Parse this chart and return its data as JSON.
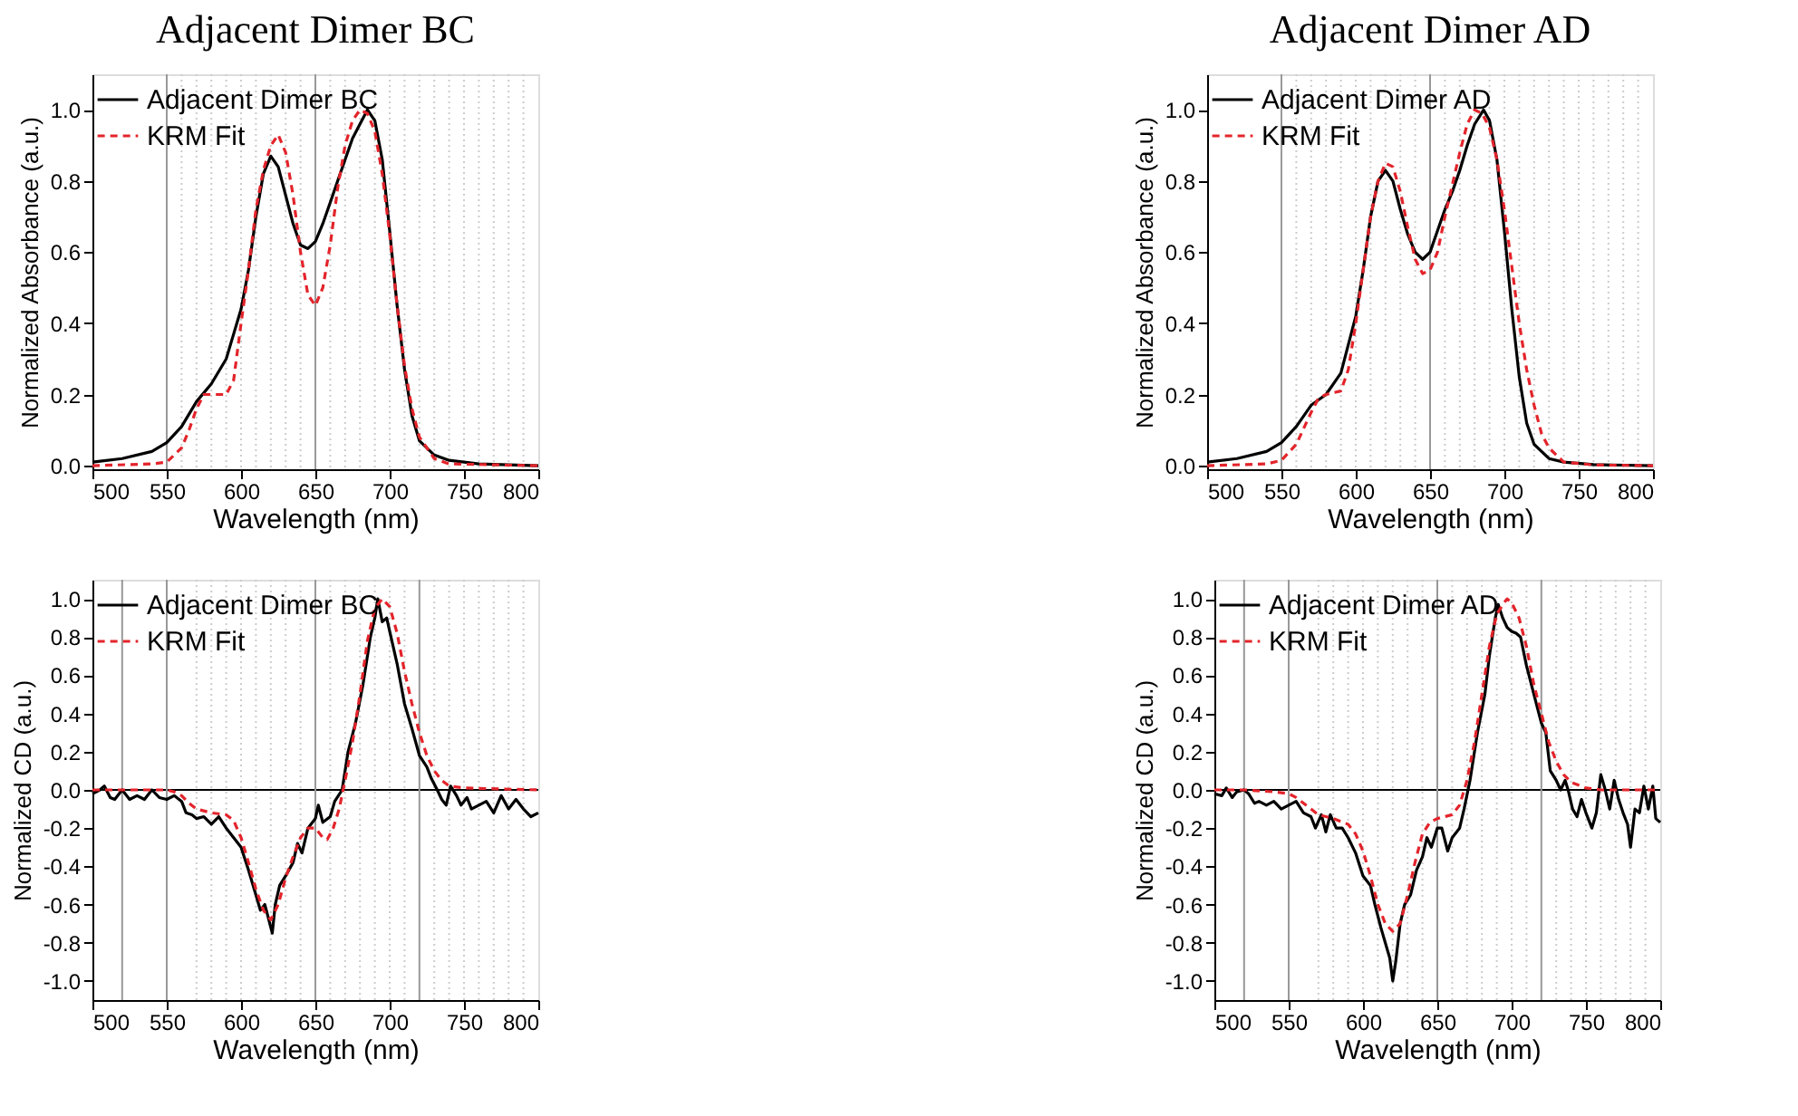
{
  "chart_data": [
    {
      "type": "line",
      "title": "Adjacent Dimer BC",
      "xlabel": "Wavelength (nm)",
      "ylabel": "Normalized Absorbance (a.u.)",
      "xlim": [
        500,
        800
      ],
      "xticks": [
        500,
        550,
        600,
        650,
        700,
        750,
        800
      ],
      "ylim": [
        -0.01,
        1.1
      ],
      "yticks": [
        {
          "value": 0,
          "label": "0.0"
        },
        {
          "value": 0.2,
          "label": "0.2"
        },
        {
          "value": 0.4,
          "label": "0.4"
        },
        {
          "value": 0.6,
          "label": "0.6"
        },
        {
          "value": 0.8,
          "label": "0.8"
        },
        {
          "value": 1,
          "label": "1.0"
        }
      ],
      "legend": "top left",
      "series": [
        {
          "name": "Adjacent Dimer BC",
          "color": "#000000",
          "line_style": "solid",
          "x": [
            500,
            520,
            540,
            550,
            560,
            570,
            580,
            590,
            600,
            605,
            610,
            615,
            620,
            625,
            630,
            635,
            640,
            645,
            650,
            655,
            660,
            665,
            670,
            675,
            680,
            685,
            690,
            695,
            700,
            705,
            710,
            715,
            720,
            730,
            740,
            760,
            800
          ],
          "values": [
            0.01,
            0.02,
            0.04,
            0.065,
            0.11,
            0.18,
            0.23,
            0.3,
            0.44,
            0.55,
            0.7,
            0.82,
            0.87,
            0.84,
            0.76,
            0.68,
            0.62,
            0.61,
            0.63,
            0.68,
            0.74,
            0.8,
            0.86,
            0.92,
            0.96,
            1.0,
            0.97,
            0.86,
            0.66,
            0.45,
            0.27,
            0.14,
            0.07,
            0.03,
            0.015,
            0.005,
            0
          ]
        },
        {
          "name": "KRM Fit",
          "color": "#e3242b",
          "line_style": "dashed",
          "x": [
            500,
            540,
            550,
            560,
            565,
            570,
            575,
            580,
            590,
            595,
            600,
            605,
            610,
            615,
            620,
            625,
            630,
            635,
            640,
            645,
            650,
            655,
            660,
            665,
            670,
            675,
            680,
            685,
            690,
            695,
            700,
            705,
            710,
            715,
            720,
            730,
            740,
            800
          ],
          "values": [
            0,
            0.005,
            0.01,
            0.05,
            0.1,
            0.16,
            0.2,
            0.2,
            0.2,
            0.24,
            0.4,
            0.55,
            0.72,
            0.83,
            0.9,
            0.93,
            0.88,
            0.76,
            0.6,
            0.48,
            0.45,
            0.5,
            0.62,
            0.78,
            0.9,
            0.97,
            1.0,
            0.99,
            0.94,
            0.82,
            0.65,
            0.45,
            0.28,
            0.16,
            0.08,
            0.02,
            0.005,
            0
          ]
        }
      ],
      "ref_lines": [
        {
          "axis": "x",
          "value": 550,
          "color": "#999999",
          "line_style": "solid"
        },
        {
          "axis": "x",
          "value": 650,
          "color": "#999999",
          "line_style": "solid"
        },
        {
          "axis": "x",
          "value": 560,
          "color": "#cccccc",
          "line_style": "dotted"
        },
        {
          "axis": "x",
          "value": 570,
          "color": "#cccccc",
          "line_style": "dotted"
        },
        {
          "axis": "x",
          "value": 580,
          "color": "#cccccc",
          "line_style": "dotted"
        },
        {
          "axis": "x",
          "value": 590,
          "color": "#cccccc",
          "line_style": "dotted"
        },
        {
          "axis": "x",
          "value": 600,
          "color": "#cccccc",
          "line_style": "dotted"
        },
        {
          "axis": "x",
          "value": 610,
          "color": "#cccccc",
          "line_style": "dotted"
        },
        {
          "axis": "x",
          "value": 620,
          "color": "#cccccc",
          "line_style": "dotted"
        },
        {
          "axis": "x",
          "value": 630,
          "color": "#cccccc",
          "line_style": "dotted"
        },
        {
          "axis": "x",
          "value": 640,
          "color": "#cccccc",
          "line_style": "dotted"
        },
        {
          "axis": "x",
          "value": 660,
          "color": "#cccccc",
          "line_style": "dotted"
        },
        {
          "axis": "x",
          "value": 670,
          "color": "#cccccc",
          "line_style": "dotted"
        },
        {
          "axis": "x",
          "value": 680,
          "color": "#cccccc",
          "line_style": "dotted"
        },
        {
          "axis": "x",
          "value": 690,
          "color": "#cccccc",
          "line_style": "dotted"
        },
        {
          "axis": "x",
          "value": 700,
          "color": "#cccccc",
          "line_style": "dotted"
        },
        {
          "axis": "x",
          "value": 710,
          "color": "#cccccc",
          "line_style": "dotted"
        },
        {
          "axis": "x",
          "value": 720,
          "color": "#cccccc",
          "line_style": "dotted"
        },
        {
          "axis": "x",
          "value": 730,
          "color": "#cccccc",
          "line_style": "dotted"
        },
        {
          "axis": "x",
          "value": 740,
          "color": "#cccccc",
          "line_style": "dotted"
        },
        {
          "axis": "x",
          "value": 750,
          "color": "#cccccc",
          "line_style": "dotted"
        },
        {
          "axis": "x",
          "value": 760,
          "color": "#cccccc",
          "line_style": "dotted"
        },
        {
          "axis": "x",
          "value": 770,
          "color": "#cccccc",
          "line_style": "dotted"
        },
        {
          "axis": "x",
          "value": 780,
          "color": "#cccccc",
          "line_style": "dotted"
        },
        {
          "axis": "x",
          "value": 790,
          "color": "#cccccc",
          "line_style": "dotted"
        }
      ]
    },
    {
      "type": "line",
      "title": "Adjacent Dimer AD",
      "xlabel": "Wavelength (nm)",
      "ylabel": "Normalized Absorbance (a.u.)",
      "xlim": [
        500,
        800
      ],
      "xticks": [
        500,
        550,
        600,
        650,
        700,
        750,
        800
      ],
      "ylim": [
        -0.01,
        1.1
      ],
      "yticks": [
        {
          "value": 0,
          "label": "0.0"
        },
        {
          "value": 0.2,
          "label": "0.2"
        },
        {
          "value": 0.4,
          "label": "0.4"
        },
        {
          "value": 0.6,
          "label": "0.6"
        },
        {
          "value": 0.8,
          "label": "0.8"
        },
        {
          "value": 1,
          "label": "1.0"
        }
      ],
      "legend": "top left",
      "series": [
        {
          "name": "Adjacent Dimer AD",
          "color": "#000000",
          "line_style": "solid",
          "x": [
            500,
            520,
            540,
            550,
            560,
            570,
            580,
            590,
            600,
            605,
            610,
            615,
            620,
            625,
            630,
            635,
            640,
            645,
            650,
            655,
            660,
            665,
            670,
            675,
            680,
            686,
            690,
            695,
            700,
            705,
            710,
            715,
            720,
            730,
            740,
            760,
            800
          ],
          "values": [
            0.01,
            0.02,
            0.04,
            0.065,
            0.11,
            0.17,
            0.2,
            0.26,
            0.42,
            0.55,
            0.7,
            0.8,
            0.83,
            0.8,
            0.72,
            0.65,
            0.6,
            0.58,
            0.6,
            0.66,
            0.72,
            0.77,
            0.83,
            0.9,
            0.96,
            1.0,
            0.97,
            0.86,
            0.66,
            0.44,
            0.25,
            0.12,
            0.06,
            0.02,
            0.01,
            0.003,
            0
          ]
        },
        {
          "name": "KRM Fit",
          "color": "#e3242b",
          "line_style": "dashed",
          "x": [
            500,
            540,
            550,
            560,
            570,
            575,
            580,
            590,
            595,
            600,
            605,
            610,
            615,
            620,
            625,
            630,
            635,
            640,
            645,
            650,
            655,
            660,
            665,
            670,
            675,
            680,
            685,
            690,
            695,
            700,
            705,
            710,
            715,
            720,
            725,
            730,
            740,
            760,
            800
          ],
          "values": [
            0,
            0.005,
            0.015,
            0.06,
            0.15,
            0.19,
            0.2,
            0.21,
            0.27,
            0.4,
            0.55,
            0.7,
            0.8,
            0.85,
            0.84,
            0.77,
            0.67,
            0.58,
            0.54,
            0.55,
            0.6,
            0.7,
            0.79,
            0.88,
            0.96,
            1.0,
            0.99,
            0.95,
            0.86,
            0.72,
            0.56,
            0.4,
            0.27,
            0.17,
            0.09,
            0.05,
            0.01,
            0.002,
            0
          ]
        }
      ],
      "ref_lines": [
        {
          "axis": "x",
          "value": 550,
          "color": "#999999",
          "line_style": "solid"
        },
        {
          "axis": "x",
          "value": 650,
          "color": "#999999",
          "line_style": "solid"
        },
        {
          "axis": "x",
          "value": 560,
          "color": "#cccccc",
          "line_style": "dotted"
        },
        {
          "axis": "x",
          "value": 570,
          "color": "#cccccc",
          "line_style": "dotted"
        },
        {
          "axis": "x",
          "value": 580,
          "color": "#cccccc",
          "line_style": "dotted"
        },
        {
          "axis": "x",
          "value": 590,
          "color": "#cccccc",
          "line_style": "dotted"
        },
        {
          "axis": "x",
          "value": 600,
          "color": "#cccccc",
          "line_style": "dotted"
        },
        {
          "axis": "x",
          "value": 610,
          "color": "#cccccc",
          "line_style": "dotted"
        },
        {
          "axis": "x",
          "value": 620,
          "color": "#cccccc",
          "line_style": "dotted"
        },
        {
          "axis": "x",
          "value": 630,
          "color": "#cccccc",
          "line_style": "dotted"
        },
        {
          "axis": "x",
          "value": 640,
          "color": "#cccccc",
          "line_style": "dotted"
        },
        {
          "axis": "x",
          "value": 660,
          "color": "#cccccc",
          "line_style": "dotted"
        },
        {
          "axis": "x",
          "value": 670,
          "color": "#cccccc",
          "line_style": "dotted"
        },
        {
          "axis": "x",
          "value": 680,
          "color": "#cccccc",
          "line_style": "dotted"
        },
        {
          "axis": "x",
          "value": 690,
          "color": "#cccccc",
          "line_style": "dotted"
        },
        {
          "axis": "x",
          "value": 700,
          "color": "#cccccc",
          "line_style": "dotted"
        },
        {
          "axis": "x",
          "value": 710,
          "color": "#cccccc",
          "line_style": "dotted"
        },
        {
          "axis": "x",
          "value": 720,
          "color": "#cccccc",
          "line_style": "dotted"
        },
        {
          "axis": "x",
          "value": 730,
          "color": "#cccccc",
          "line_style": "dotted"
        },
        {
          "axis": "x",
          "value": 740,
          "color": "#cccccc",
          "line_style": "dotted"
        },
        {
          "axis": "x",
          "value": 750,
          "color": "#cccccc",
          "line_style": "dotted"
        },
        {
          "axis": "x",
          "value": 760,
          "color": "#cccccc",
          "line_style": "dotted"
        },
        {
          "axis": "x",
          "value": 770,
          "color": "#cccccc",
          "line_style": "dotted"
        },
        {
          "axis": "x",
          "value": 780,
          "color": "#cccccc",
          "line_style": "dotted"
        },
        {
          "axis": "x",
          "value": 790,
          "color": "#cccccc",
          "line_style": "dotted"
        }
      ]
    },
    {
      "type": "line",
      "xlabel": "Wavelength (nm)",
      "ylabel": "Normalized CD (a.u.)",
      "xlim": [
        500,
        800
      ],
      "xticks": [
        500,
        550,
        600,
        650,
        700,
        750,
        800
      ],
      "ylim": [
        -1.1,
        1.1
      ],
      "yticks": [
        {
          "value": -1,
          "label": "-1.0"
        },
        {
          "value": -0.8,
          "label": "-0.8"
        },
        {
          "value": -0.6,
          "label": "-0.6"
        },
        {
          "value": -0.4,
          "label": "-0.4"
        },
        {
          "value": -0.2,
          "label": "-0.2"
        },
        {
          "value": 0,
          "label": "0.0"
        },
        {
          "value": 0.2,
          "label": "0.2"
        },
        {
          "value": 0.4,
          "label": "0.4"
        },
        {
          "value": 0.6,
          "label": "0.6"
        },
        {
          "value": 0.8,
          "label": "0.8"
        },
        {
          "value": 1,
          "label": "1.0"
        }
      ],
      "legend": "top left",
      "series": [
        {
          "name": "Adjacent Dimer BC",
          "color": "#000000",
          "line_style": "solid",
          "x": [
            500,
            505,
            508,
            512,
            515,
            520,
            525,
            530,
            535,
            540,
            545,
            550,
            555,
            560,
            563,
            567,
            570,
            575,
            580,
            585,
            590,
            595,
            600,
            605,
            610,
            613,
            616,
            618,
            621,
            623,
            626,
            630,
            635,
            638,
            641,
            645,
            650,
            652,
            655,
            660,
            663,
            668,
            672,
            677,
            682,
            687,
            690,
            692,
            695,
            698,
            700,
            705,
            710,
            715,
            720,
            725,
            728,
            732,
            735,
            738,
            741,
            745,
            748,
            752,
            755,
            760,
            765,
            770,
            775,
            780,
            785,
            790,
            795,
            800
          ],
          "values": [
            -0.02,
            0.0,
            0.02,
            -0.04,
            -0.05,
            0.0,
            -0.05,
            -0.03,
            -0.05,
            0.0,
            -0.04,
            -0.05,
            -0.03,
            -0.06,
            -0.12,
            -0.13,
            -0.15,
            -0.14,
            -0.18,
            -0.14,
            -0.2,
            -0.25,
            -0.3,
            -0.42,
            -0.55,
            -0.63,
            -0.6,
            -0.66,
            -0.75,
            -0.6,
            -0.5,
            -0.45,
            -0.38,
            -0.28,
            -0.33,
            -0.2,
            -0.15,
            -0.08,
            -0.17,
            -0.14,
            -0.06,
            0.0,
            0.2,
            0.35,
            0.55,
            0.8,
            0.9,
            1.0,
            0.88,
            0.9,
            0.83,
            0.66,
            0.45,
            0.32,
            0.18,
            0.12,
            0.06,
            0.0,
            -0.05,
            -0.08,
            0.02,
            -0.03,
            -0.08,
            -0.04,
            -0.1,
            -0.08,
            -0.06,
            -0.12,
            -0.03,
            -0.1,
            -0.05,
            -0.1,
            -0.14,
            -0.12
          ]
        },
        {
          "name": "KRM Fit",
          "color": "#e3242b",
          "line_style": "dashed",
          "x": [
            500,
            550,
            555,
            560,
            565,
            570,
            580,
            590,
            595,
            600,
            605,
            610,
            615,
            620,
            625,
            630,
            635,
            640,
            645,
            650,
            655,
            658,
            662,
            666,
            670,
            675,
            680,
            685,
            690,
            695,
            700,
            705,
            710,
            715,
            720,
            725,
            730,
            735,
            740,
            750,
            800
          ],
          "values": [
            0,
            0,
            -0.01,
            -0.03,
            -0.07,
            -0.1,
            -0.12,
            -0.13,
            -0.16,
            -0.25,
            -0.38,
            -0.52,
            -0.63,
            -0.68,
            -0.6,
            -0.46,
            -0.35,
            -0.25,
            -0.2,
            -0.2,
            -0.25,
            -0.26,
            -0.2,
            -0.1,
            0.05,
            0.25,
            0.5,
            0.78,
            0.95,
            1.0,
            0.96,
            0.82,
            0.62,
            0.45,
            0.3,
            0.18,
            0.1,
            0.05,
            0.02,
            0.01,
            0
          ]
        }
      ],
      "ref_lines": [
        {
          "axis": "y",
          "value": 0,
          "color": "#000000",
          "line_style": "solid"
        },
        {
          "axis": "x",
          "value": 520,
          "color": "#999999",
          "line_style": "solid"
        },
        {
          "axis": "x",
          "value": 550,
          "color": "#999999",
          "line_style": "solid"
        },
        {
          "axis": "x",
          "value": 650,
          "color": "#999999",
          "line_style": "solid"
        },
        {
          "axis": "x",
          "value": 720,
          "color": "#999999",
          "line_style": "solid"
        },
        {
          "axis": "x",
          "value": 570,
          "color": "#cccccc",
          "line_style": "dotted"
        },
        {
          "axis": "x",
          "value": 580,
          "color": "#cccccc",
          "line_style": "dotted"
        },
        {
          "axis": "x",
          "value": 590,
          "color": "#cccccc",
          "line_style": "dotted"
        },
        {
          "axis": "x",
          "value": 600,
          "color": "#cccccc",
          "line_style": "dotted"
        },
        {
          "axis": "x",
          "value": 610,
          "color": "#cccccc",
          "line_style": "dotted"
        },
        {
          "axis": "x",
          "value": 620,
          "color": "#cccccc",
          "line_style": "dotted"
        },
        {
          "axis": "x",
          "value": 630,
          "color": "#cccccc",
          "line_style": "dotted"
        },
        {
          "axis": "x",
          "value": 640,
          "color": "#cccccc",
          "line_style": "dotted"
        },
        {
          "axis": "x",
          "value": 660,
          "color": "#cccccc",
          "line_style": "dotted"
        },
        {
          "axis": "x",
          "value": 670,
          "color": "#cccccc",
          "line_style": "dotted"
        },
        {
          "axis": "x",
          "value": 680,
          "color": "#cccccc",
          "line_style": "dotted"
        },
        {
          "axis": "x",
          "value": 690,
          "color": "#cccccc",
          "line_style": "dotted"
        },
        {
          "axis": "x",
          "value": 700,
          "color": "#cccccc",
          "line_style": "dotted"
        },
        {
          "axis": "x",
          "value": 710,
          "color": "#cccccc",
          "line_style": "dotted"
        },
        {
          "axis": "x",
          "value": 730,
          "color": "#cccccc",
          "line_style": "dotted"
        },
        {
          "axis": "x",
          "value": 740,
          "color": "#cccccc",
          "line_style": "dotted"
        },
        {
          "axis": "x",
          "value": 750,
          "color": "#cccccc",
          "line_style": "dotted"
        },
        {
          "axis": "x",
          "value": 760,
          "color": "#cccccc",
          "line_style": "dotted"
        },
        {
          "axis": "x",
          "value": 770,
          "color": "#cccccc",
          "line_style": "dotted"
        },
        {
          "axis": "x",
          "value": 780,
          "color": "#cccccc",
          "line_style": "dotted"
        },
        {
          "axis": "x",
          "value": 790,
          "color": "#cccccc",
          "line_style": "dotted"
        }
      ]
    },
    {
      "type": "line",
      "xlabel": "Wavelength (nm)",
      "ylabel": "Normalized CD (a.u.)",
      "xlim": [
        500,
        800
      ],
      "xticks": [
        500,
        550,
        600,
        650,
        700,
        750,
        800
      ],
      "ylim": [
        -1.1,
        1.1
      ],
      "yticks": [
        {
          "value": -1,
          "label": "-1.0"
        },
        {
          "value": -0.8,
          "label": "-0.8"
        },
        {
          "value": -0.6,
          "label": "-0.6"
        },
        {
          "value": -0.4,
          "label": "-0.4"
        },
        {
          "value": -0.2,
          "label": "-0.2"
        },
        {
          "value": 0,
          "label": "0.0"
        },
        {
          "value": 0.2,
          "label": "0.2"
        },
        {
          "value": 0.4,
          "label": "0.4"
        },
        {
          "value": 0.6,
          "label": "0.6"
        },
        {
          "value": 0.8,
          "label": "0.8"
        },
        {
          "value": 1,
          "label": "1.0"
        }
      ],
      "legend": "top left",
      "series": [
        {
          "name": "Adjacent Dimer AD",
          "color": "#000000",
          "line_style": "solid",
          "x": [
            500,
            505,
            508,
            512,
            515,
            520,
            523,
            527,
            530,
            535,
            540,
            545,
            550,
            555,
            560,
            565,
            568,
            572,
            575,
            578,
            582,
            586,
            590,
            595,
            600,
            605,
            608,
            612,
            615,
            618,
            620,
            622,
            625,
            628,
            632,
            636,
            640,
            643,
            646,
            650,
            653,
            657,
            660,
            665,
            668,
            672,
            677,
            682,
            685,
            689,
            691,
            694,
            697,
            700,
            703,
            706,
            710,
            715,
            720,
            723,
            726,
            730,
            733,
            736,
            738,
            741,
            744,
            747,
            750,
            754,
            757,
            760,
            763,
            766,
            769,
            772,
            775,
            778,
            780,
            783,
            786,
            789,
            792,
            795,
            797,
            800
          ],
          "values": [
            -0.02,
            -0.03,
            0.01,
            -0.04,
            -0.01,
            0.0,
            -0.02,
            -0.07,
            -0.06,
            -0.08,
            -0.06,
            -0.1,
            -0.08,
            -0.06,
            -0.12,
            -0.14,
            -0.2,
            -0.13,
            -0.22,
            -0.13,
            -0.2,
            -0.2,
            -0.25,
            -0.33,
            -0.45,
            -0.5,
            -0.6,
            -0.72,
            -0.8,
            -0.88,
            -1.0,
            -0.9,
            -0.7,
            -0.6,
            -0.55,
            -0.42,
            -0.35,
            -0.25,
            -0.3,
            -0.2,
            -0.2,
            -0.32,
            -0.25,
            -0.2,
            -0.1,
            0.05,
            0.3,
            0.5,
            0.7,
            0.9,
            0.97,
            0.9,
            0.85,
            0.83,
            0.82,
            0.8,
            0.65,
            0.5,
            0.35,
            0.3,
            0.1,
            0.05,
            0.0,
            0.05,
            0.0,
            -0.1,
            -0.14,
            -0.05,
            -0.12,
            -0.2,
            -0.12,
            0.08,
            0.0,
            -0.1,
            0.05,
            -0.05,
            -0.12,
            -0.18,
            -0.3,
            -0.1,
            -0.12,
            0.02,
            -0.1,
            0.02,
            -0.15,
            -0.17
          ]
        },
        {
          "name": "KRM Fit",
          "color": "#e3242b",
          "line_style": "dashed",
          "x": [
            500,
            520,
            540,
            550,
            555,
            560,
            565,
            570,
            580,
            590,
            595,
            600,
            605,
            610,
            615,
            620,
            625,
            630,
            635,
            640,
            645,
            650,
            655,
            660,
            665,
            670,
            675,
            680,
            685,
            690,
            695,
            697,
            700,
            705,
            710,
            715,
            720,
            725,
            730,
            735,
            740,
            750,
            760,
            800
          ],
          "values": [
            0,
            0,
            -0.01,
            -0.02,
            -0.04,
            -0.07,
            -0.1,
            -0.13,
            -0.15,
            -0.18,
            -0.23,
            -0.32,
            -0.45,
            -0.6,
            -0.7,
            -0.74,
            -0.7,
            -0.55,
            -0.38,
            -0.23,
            -0.17,
            -0.15,
            -0.14,
            -0.13,
            -0.08,
            0.05,
            0.25,
            0.5,
            0.75,
            0.92,
            0.98,
            1.0,
            0.98,
            0.9,
            0.75,
            0.55,
            0.4,
            0.25,
            0.15,
            0.08,
            0.04,
            0.01,
            0.0,
            0
          ]
        }
      ],
      "ref_lines": [
        {
          "axis": "y",
          "value": 0,
          "color": "#000000",
          "line_style": "solid"
        },
        {
          "axis": "x",
          "value": 520,
          "color": "#999999",
          "line_style": "solid"
        },
        {
          "axis": "x",
          "value": 550,
          "color": "#999999",
          "line_style": "solid"
        },
        {
          "axis": "x",
          "value": 650,
          "color": "#999999",
          "line_style": "solid"
        },
        {
          "axis": "x",
          "value": 720,
          "color": "#999999",
          "line_style": "solid"
        },
        {
          "axis": "x",
          "value": 570,
          "color": "#cccccc",
          "line_style": "dotted"
        },
        {
          "axis": "x",
          "value": 580,
          "color": "#cccccc",
          "line_style": "dotted"
        },
        {
          "axis": "x",
          "value": 590,
          "color": "#cccccc",
          "line_style": "dotted"
        },
        {
          "axis": "x",
          "value": 600,
          "color": "#cccccc",
          "line_style": "dotted"
        },
        {
          "axis": "x",
          "value": 610,
          "color": "#cccccc",
          "line_style": "dotted"
        },
        {
          "axis": "x",
          "value": 620,
          "color": "#cccccc",
          "line_style": "dotted"
        },
        {
          "axis": "x",
          "value": 630,
          "color": "#cccccc",
          "line_style": "dotted"
        },
        {
          "axis": "x",
          "value": 640,
          "color": "#cccccc",
          "line_style": "dotted"
        },
        {
          "axis": "x",
          "value": 660,
          "color": "#cccccc",
          "line_style": "dotted"
        },
        {
          "axis": "x",
          "value": 670,
          "color": "#cccccc",
          "line_style": "dotted"
        },
        {
          "axis": "x",
          "value": 680,
          "color": "#cccccc",
          "line_style": "dotted"
        },
        {
          "axis": "x",
          "value": 690,
          "color": "#cccccc",
          "line_style": "dotted"
        },
        {
          "axis": "x",
          "value": 700,
          "color": "#cccccc",
          "line_style": "dotted"
        },
        {
          "axis": "x",
          "value": 710,
          "color": "#cccccc",
          "line_style": "dotted"
        },
        {
          "axis": "x",
          "value": 730,
          "color": "#cccccc",
          "line_style": "dotted"
        },
        {
          "axis": "x",
          "value": 740,
          "color": "#cccccc",
          "line_style": "dotted"
        },
        {
          "axis": "x",
          "value": 750,
          "color": "#cccccc",
          "line_style": "dotted"
        },
        {
          "axis": "x",
          "value": 760,
          "color": "#cccccc",
          "line_style": "dotted"
        },
        {
          "axis": "x",
          "value": 770,
          "color": "#cccccc",
          "line_style": "dotted"
        },
        {
          "axis": "x",
          "value": 780,
          "color": "#cccccc",
          "line_style": "dotted"
        },
        {
          "axis": "x",
          "value": 790,
          "color": "#cccccc",
          "line_style": "dotted"
        }
      ]
    }
  ]
}
